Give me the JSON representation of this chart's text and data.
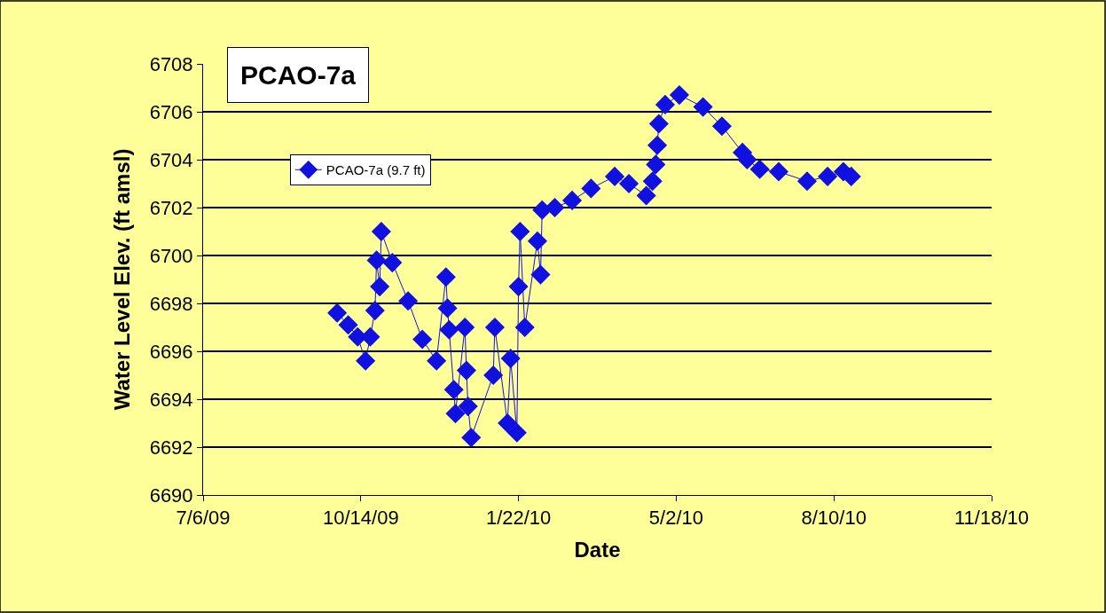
{
  "chart_data": {
    "type": "line",
    "title": "PCAO-7a",
    "xlabel": "Date",
    "ylabel": "Water Level Elev. (ft amsl)",
    "x": [
      "2009-09-29",
      "2009-10-06",
      "2009-10-12",
      "2009-10-17",
      "2009-10-20",
      "2009-10-23",
      "2009-10-24",
      "2009-10-26",
      "2009-10-27",
      "2009-11-03",
      "2009-11-13",
      "2009-11-22",
      "2009-12-01",
      "2009-12-07",
      "2009-12-08",
      "2009-12-09",
      "2009-12-12",
      "2009-12-13",
      "2009-12-19",
      "2009-12-20",
      "2009-12-21",
      "2009-12-23",
      "2010-01-06",
      "2010-01-07",
      "2010-01-15",
      "2010-01-17",
      "2010-01-21",
      "2010-01-22",
      "2010-01-23",
      "2010-01-26",
      "2010-02-03",
      "2010-02-05",
      "2010-02-06",
      "2010-02-14",
      "2010-02-25",
      "2010-03-09",
      "2010-03-24",
      "2010-04-02",
      "2010-04-13",
      "2010-04-17",
      "2010-04-19",
      "2010-04-20",
      "2010-04-21",
      "2010-04-25",
      "2010-05-04",
      "2010-05-19",
      "2010-05-31",
      "2010-06-13",
      "2010-06-16",
      "2010-06-24",
      "2010-07-06",
      "2010-07-24",
      "2010-08-06",
      "2010-08-16",
      "2010-08-21"
    ],
    "series": [
      {
        "name": "PCAO-7a (9.7 ft)",
        "color": "#1010e0",
        "values": [
          6697.6,
          6697.1,
          6696.6,
          6695.6,
          6696.6,
          6697.7,
          6699.8,
          6698.7,
          6701.0,
          6699.7,
          6698.1,
          6696.5,
          6695.6,
          6699.1,
          6697.8,
          6696.9,
          6694.4,
          6693.4,
          6697.0,
          6695.2,
          6693.7,
          6692.4,
          6695.0,
          6697.0,
          6693.0,
          6695.7,
          6692.6,
          6698.7,
          6701.0,
          6697.0,
          6700.6,
          6699.2,
          6701.9,
          6702.0,
          6702.3,
          6702.8,
          6703.3,
          6703.0,
          6702.5,
          6703.1,
          6703.8,
          6704.6,
          6705.5,
          6706.3,
          6706.7,
          6706.2,
          6705.4,
          6704.3,
          6704.0,
          6703.6,
          6703.5,
          6703.1,
          6703.3,
          6703.5,
          6703.3
        ]
      }
    ],
    "xlim": [
      "2009-07-06",
      "2010-11-18"
    ],
    "xticks": [
      {
        "value": "2009-07-06",
        "label": "7/6/09"
      },
      {
        "value": "2009-10-14",
        "label": "10/14/09"
      },
      {
        "value": "2010-01-22",
        "label": "1/22/10"
      },
      {
        "value": "2010-05-02",
        "label": "5/2/10"
      },
      {
        "value": "2010-08-10",
        "label": "8/10/10"
      },
      {
        "value": "2010-11-18",
        "label": "11/18/10"
      }
    ],
    "ylim": [
      6690,
      6708
    ],
    "yticks": [
      6690,
      6692,
      6694,
      6696,
      6698,
      6700,
      6702,
      6704,
      6706,
      6708
    ],
    "grid": "y",
    "legend": "top left",
    "marker": "diamond",
    "line_style": "solid"
  }
}
